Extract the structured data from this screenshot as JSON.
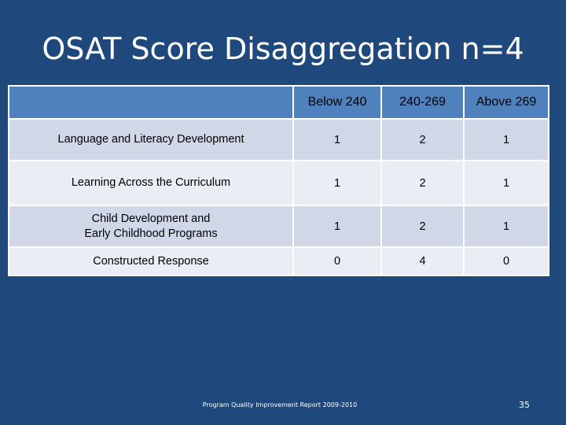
{
  "slide": {
    "title": "OSAT Score Disaggregation n=4",
    "footer": "Program Quality Improvement Report 2009-2010",
    "page_number": "35"
  },
  "table": {
    "headers": [
      "",
      "Below 240",
      "240-269",
      "Above 269"
    ],
    "rows": [
      {
        "label_line1": "Language and Literacy Development",
        "label_line2": "",
        "values": [
          "1",
          "2",
          "1"
        ]
      },
      {
        "label_line1": "Learning Across the Curriculum",
        "label_line2": "",
        "values": [
          "1",
          "2",
          "1"
        ]
      },
      {
        "label_line1": "Child Development and",
        "label_line2": "Early Childhood Programs",
        "values": [
          "1",
          "2",
          "1"
        ]
      },
      {
        "label_line1": "Constructed Response",
        "label_line2": "",
        "values": [
          "0",
          "4",
          "0"
        ]
      }
    ]
  },
  "colors": {
    "background": "#1f497d",
    "header_fill": "#4f81bd",
    "row_fill": "#d0d8e8",
    "row_fill_alt": "#e9edf4"
  }
}
